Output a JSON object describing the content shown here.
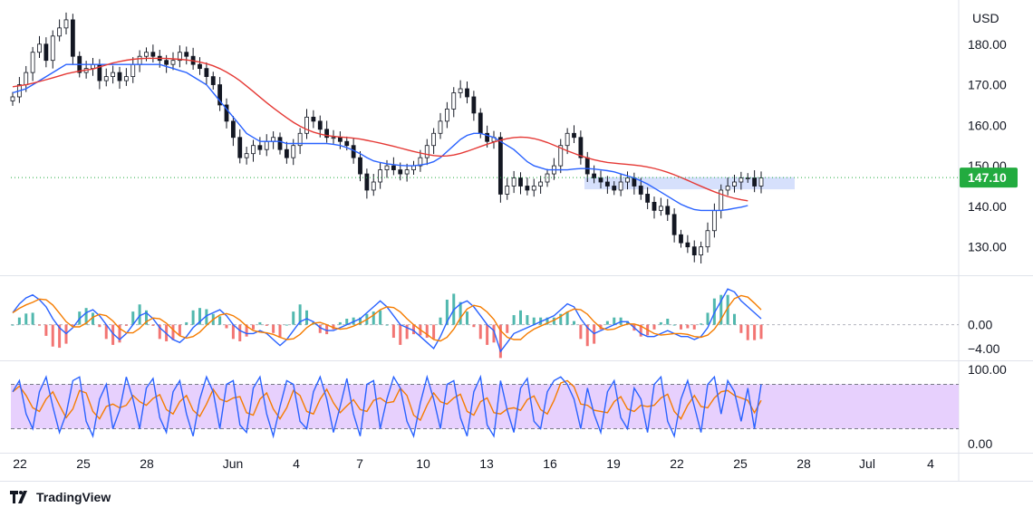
{
  "currency": "USD",
  "brand": "TradingView",
  "colors": {
    "up": "#26a69a",
    "down": "#ef5350",
    "candle": "#131722",
    "ma_fast": "#2962ff",
    "ma_slow": "#e53935",
    "macd_line": "#2962ff",
    "macd_signal": "#f57c00",
    "stoch_k": "#2962ff",
    "stoch_d": "#f57c00",
    "stoch_band": "#e1c4fd",
    "zone": "#c8d6fb",
    "last_price_bg": "#22ab3f"
  },
  "chart_data": [
    {
      "type": "candlestick",
      "ylim": [
        123,
        190
      ],
      "y_ticks": [
        "130.00",
        "140.00",
        "150.00",
        "160.00",
        "170.00",
        "180.00"
      ],
      "last_price": "147.10",
      "x_ticks": [
        "22",
        "25",
        "28",
        "Jun",
        "4",
        "7",
        "10",
        "13",
        "16",
        "19",
        "22",
        "25",
        "28",
        "Jul",
        "4"
      ],
      "resistance_zone": [
        144.2,
        147.2
      ],
      "close": [
        167,
        170,
        173,
        178,
        180,
        176,
        182,
        184,
        186,
        177,
        173,
        174,
        175,
        171,
        172,
        173,
        171,
        172,
        175,
        177,
        178,
        177,
        176,
        175,
        176,
        178,
        177,
        175,
        174,
        172,
        170,
        165,
        161,
        157,
        152,
        153,
        155,
        154,
        156,
        157,
        154,
        152,
        155,
        158,
        162,
        161,
        159,
        157,
        157,
        156,
        155,
        152,
        148,
        144,
        146,
        149,
        150,
        149,
        148,
        149,
        150,
        152,
        155,
        158,
        161,
        164,
        168,
        169,
        167,
        163,
        158,
        156,
        157,
        143,
        145,
        147,
        145,
        144,
        145,
        146,
        148,
        150,
        155,
        158,
        157,
        152,
        148,
        147,
        146,
        145,
        144,
        146,
        147,
        145,
        143,
        141,
        139,
        140,
        138,
        133,
        131,
        130,
        128,
        130,
        134,
        139,
        144,
        145,
        146,
        147,
        147,
        145,
        147
      ],
      "ma_fast": [
        168,
        168.5,
        169,
        170,
        171,
        172,
        173,
        174,
        175,
        175,
        175,
        175,
        175,
        175,
        175,
        175,
        175,
        175,
        175,
        175,
        175,
        175,
        175,
        174.5,
        174,
        173.5,
        173,
        172,
        171,
        170,
        168,
        166,
        164,
        162,
        160,
        158,
        157,
        156,
        156,
        156,
        156,
        155.5,
        155.5,
        155.5,
        155.5,
        155.5,
        155.5,
        155.5,
        155.3,
        155,
        154.5,
        153.8,
        153,
        152,
        151.2,
        150.8,
        150.5,
        150.3,
        150.1,
        150,
        150,
        150.2,
        150.5,
        151,
        152,
        153.5,
        155,
        156.5,
        157.5,
        158,
        158,
        157.5,
        157,
        156,
        155,
        154,
        152.5,
        151,
        150,
        149.5,
        149,
        149,
        149,
        149,
        149.2,
        149.3,
        149.3,
        149.2,
        149,
        148.8,
        148.5,
        148,
        147.5,
        147,
        146.3,
        145.5,
        144.5,
        143.5,
        142.5,
        141.5,
        140.5,
        139.8,
        139.2,
        139,
        139,
        139,
        139,
        139.2,
        139.5,
        139.8,
        140.2
      ]
    },
    {
      "type": "line",
      "name": "MACD",
      "ylim": [
        -6,
        8
      ],
      "y_ticks": [
        "0.00",
        "−4.00"
      ],
      "macd": [
        2,
        3.5,
        4.5,
        5,
        4.2,
        3,
        1,
        -0.5,
        -1.5,
        -0.5,
        1,
        2,
        2.5,
        1.5,
        0,
        -1.5,
        -2.5,
        -1.5,
        0,
        1.5,
        2,
        1,
        -0.5,
        -1.5,
        -2.5,
        -3,
        -2,
        -0.5,
        0.5,
        1.5,
        2,
        2.5,
        1.5,
        0,
        -1,
        -1.5,
        -1.5,
        -1,
        -1.5,
        -2.5,
        -3.5,
        -2.5,
        -1,
        0.5,
        1,
        0.5,
        -0.5,
        -1,
        -1,
        -0.5,
        0,
        0.5,
        1,
        2,
        3,
        4,
        3,
        1.5,
        0,
        -0.5,
        -1,
        -2,
        -3,
        -4,
        -2,
        0.5,
        2.5,
        3.5,
        4,
        3,
        1.5,
        0,
        -1,
        -4.5,
        -3,
        -1.5,
        -1,
        -0.5,
        0,
        0.5,
        1,
        1.5,
        2.5,
        3.5,
        3,
        1,
        -0.5,
        -1.5,
        -1,
        -0.5,
        0,
        0.5,
        0.5,
        -0.5,
        -1.5,
        -2,
        -2,
        -1.5,
        -1,
        -1.5,
        -2,
        -2,
        -2.5,
        -2,
        -0.5,
        2,
        4,
        6,
        5.5,
        4,
        3,
        2,
        1
      ]
    },
    {
      "type": "line",
      "name": "Stoch RSI",
      "ylim": [
        -10,
        110
      ],
      "y_ticks": [
        "100.00",
        "0.00"
      ],
      "bands": [
        20,
        80
      ],
      "k": [
        70,
        85,
        40,
        20,
        70,
        90,
        50,
        15,
        40,
        85,
        90,
        30,
        10,
        60,
        80,
        20,
        45,
        90,
        60,
        20,
        75,
        88,
        35,
        15,
        70,
        85,
        40,
        10,
        60,
        90,
        70,
        20,
        80,
        85,
        25,
        15,
        75,
        90,
        40,
        10,
        50,
        85,
        80,
        30,
        20,
        70,
        90,
        60,
        15,
        50,
        88,
        40,
        10,
        80,
        85,
        20,
        60,
        90,
        75,
        30,
        10,
        55,
        90,
        60,
        20,
        80,
        85,
        35,
        10,
        70,
        90,
        25,
        10,
        85,
        45,
        15,
        75,
        88,
        30,
        20,
        70,
        85,
        90,
        80,
        60,
        20,
        75,
        40,
        15,
        70,
        85,
        35,
        20,
        75,
        60,
        15,
        80,
        90,
        30,
        10,
        60,
        85,
        50,
        15,
        80,
        90,
        40,
        85,
        70,
        30,
        75,
        20,
        80
      ]
    }
  ]
}
